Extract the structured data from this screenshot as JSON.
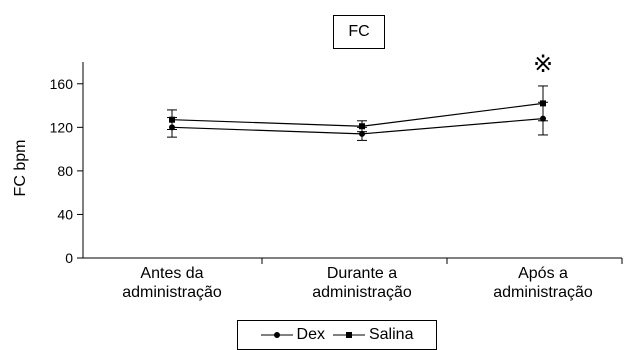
{
  "chart_data": {
    "type": "line",
    "title": "FC",
    "ylabel": "FC bpm",
    "xlabel": "",
    "ylim": [
      0,
      180
    ],
    "yticks": [
      0,
      40,
      80,
      120,
      160
    ],
    "categories": [
      [
        "Antes da",
        "administração"
      ],
      [
        "Durante a",
        "administração"
      ],
      [
        "Após a",
        "administração"
      ]
    ],
    "series": [
      {
        "name": "Dex",
        "marker": "circle",
        "values": [
          120,
          114,
          128
        ],
        "errors": [
          9,
          6,
          15
        ]
      },
      {
        "name": "Salina",
        "marker": "square",
        "values": [
          127,
          121,
          142
        ],
        "errors": [
          9,
          5,
          16
        ]
      }
    ],
    "annotations": [
      {
        "text": "※",
        "category_index": 2
      }
    ],
    "legend": "bottom",
    "grid": false
  }
}
